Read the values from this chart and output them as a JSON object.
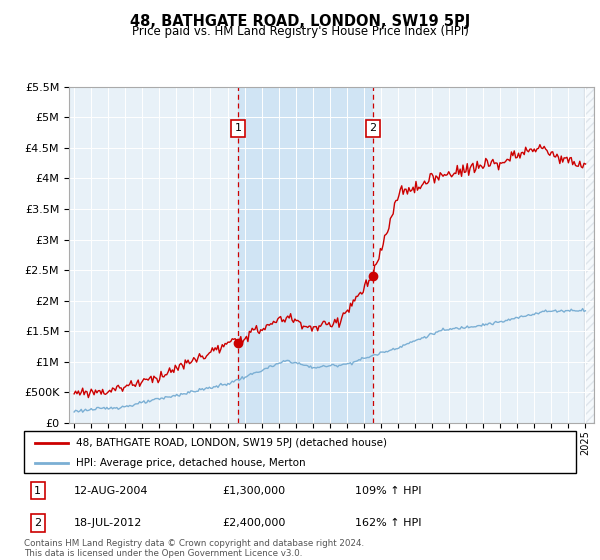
{
  "title": "48, BATHGATE ROAD, LONDON, SW19 5PJ",
  "subtitle": "Price paid vs. HM Land Registry's House Price Index (HPI)",
  "ylim": [
    0,
    5500000
  ],
  "yticks": [
    0,
    500000,
    1000000,
    1500000,
    2000000,
    2500000,
    3000000,
    3500000,
    4000000,
    4500000,
    5000000,
    5500000
  ],
  "ytick_labels": [
    "£0",
    "£500K",
    "£1M",
    "£1.5M",
    "£2M",
    "£2.5M",
    "£3M",
    "£3.5M",
    "£4M",
    "£4.5M",
    "£5M",
    "£5.5M"
  ],
  "xlim_start": 1994.7,
  "xlim_end": 2025.5,
  "sale1_x": 2004.61,
  "sale1_y": 1300000,
  "sale1_label": "1",
  "sale1_date": "12-AUG-2004",
  "sale1_price": "£1,300,000",
  "sale1_hpi": "109% ↑ HPI",
  "sale2_x": 2012.54,
  "sale2_y": 2400000,
  "sale2_label": "2",
  "sale2_date": "18-JUL-2012",
  "sale2_price": "£2,400,000",
  "sale2_hpi": "162% ↑ HPI",
  "red_line_color": "#cc0000",
  "blue_line_color": "#7bafd4",
  "background_color": "#e8f1f8",
  "highlight_color": "#d0e4f4",
  "hatch_color": "#d0d8e0",
  "legend_label_red": "48, BATHGATE ROAD, LONDON, SW19 5PJ (detached house)",
  "legend_label_blue": "HPI: Average price, detached house, Merton",
  "footer": "Contains HM Land Registry data © Crown copyright and database right 2024.\nThis data is licensed under the Open Government Licence v3.0."
}
